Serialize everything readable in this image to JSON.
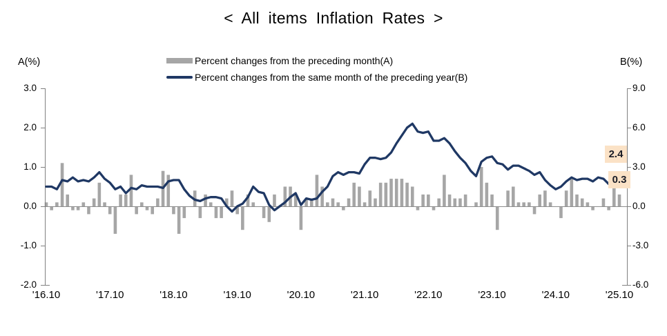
{
  "title": "< All items Inflation Rates >",
  "legend": {
    "monthly": "Percent changes from the preceding month(A)",
    "yearly": "Percent changes from the same month of the preceding year(B)"
  },
  "axes": {
    "left_title": "A(%)",
    "right_title": "B(%)",
    "left_ticks": [
      "3.0",
      "2.0",
      "1.0",
      "0.0",
      "-1.0",
      "-2.0"
    ],
    "right_ticks": [
      "9.0",
      "6.0",
      "3.0",
      "0.0",
      "-3.0",
      "-6.0"
    ],
    "x_ticks": [
      "'16.10",
      "'17.10",
      "'18.10",
      "'19.10",
      "'20.10",
      "'21.10",
      "'22.10",
      "'23.10",
      "'24.10",
      "'25.10"
    ]
  },
  "callouts": {
    "yoy_value": "2.4",
    "mom_value": "0.3"
  },
  "colors": {
    "bar": "#a6a6a6",
    "line": "#1f3864",
    "axis": "#808080",
    "zero_line": "#8c8c8c",
    "callout_bg": "#fbe2c6",
    "callout_text": "#1a1c26",
    "text": "#000000"
  },
  "chart_data": {
    "type": "bar+line combo",
    "title": "< All items Inflation Rates >",
    "frequency": "monthly",
    "x_start": "'16.10",
    "x_end": "'25.10",
    "x_tick_every": 12,
    "x_tick_labels": [
      "'16.10",
      "'17.10",
      "'18.10",
      "'19.10",
      "'20.10",
      "'21.10",
      "'22.10",
      "'23.10",
      "'24.10",
      "'25.10"
    ],
    "left_axis_label": "A(%)",
    "right_axis_label": "B(%)",
    "left_axis_range": [
      -2.0,
      3.0
    ],
    "right_axis_range": [
      -6.0,
      9.0
    ],
    "grid": false,
    "legend_position": "top-center",
    "series": [
      {
        "name": "Percent changes from the preceding month(A)",
        "type": "bar",
        "axis": "left",
        "values": [
          0.1,
          -0.1,
          0.1,
          1.1,
          0.3,
          -0.1,
          -0.1,
          0.1,
          -0.2,
          0.2,
          0.6,
          0.1,
          -0.2,
          -0.7,
          0.3,
          0.3,
          0.8,
          -0.2,
          0.1,
          -0.1,
          -0.2,
          0.2,
          0.9,
          0.8,
          -0.2,
          -0.7,
          -0.3,
          0.0,
          0.4,
          -0.3,
          0.3,
          0.1,
          -0.3,
          -0.3,
          0.2,
          0.4,
          -0.2,
          -0.6,
          0.3,
          0.1,
          0.0,
          -0.3,
          -0.4,
          0.3,
          0.0,
          0.5,
          0.5,
          0.3,
          -0.6,
          0.2,
          0.2,
          0.8,
          0.5,
          0.1,
          0.2,
          0.1,
          -0.1,
          0.2,
          0.6,
          0.5,
          0.1,
          0.4,
          0.2,
          0.6,
          0.6,
          0.7,
          0.7,
          0.7,
          0.6,
          0.5,
          -0.1,
          0.3,
          0.3,
          -0.1,
          0.2,
          0.8,
          0.3,
          0.2,
          0.2,
          0.3,
          0.0,
          0.1,
          1.0,
          0.6,
          0.3,
          -0.6,
          0.0,
          0.4,
          0.5,
          0.1,
          0.1,
          0.1,
          -0.2,
          0.3,
          0.4,
          0.1,
          0.0,
          -0.3,
          0.4,
          0.7,
          0.3,
          0.2,
          0.1,
          -0.1,
          0.0,
          0.2,
          -0.1,
          0.5,
          0.3
        ],
        "last_value_callout": "0.3"
      },
      {
        "name": "Percent changes from the same month of the preceding year(B)",
        "type": "line",
        "axis": "right",
        "values": [
          1.5,
          1.5,
          1.3,
          2.0,
          1.9,
          2.2,
          1.9,
          2.0,
          1.9,
          2.2,
          2.6,
          2.1,
          1.8,
          1.3,
          1.5,
          1.0,
          1.4,
          1.3,
          1.6,
          1.5,
          1.5,
          1.5,
          1.4,
          1.9,
          2.0,
          2.0,
          1.3,
          0.8,
          0.5,
          0.4,
          0.6,
          0.7,
          0.7,
          0.6,
          0.0,
          -0.4,
          0.0,
          0.2,
          0.7,
          1.5,
          1.1,
          1.0,
          0.1,
          -0.3,
          0.0,
          0.3,
          0.7,
          1.0,
          0.1,
          0.6,
          0.5,
          0.6,
          1.1,
          1.5,
          2.3,
          2.6,
          2.4,
          2.6,
          2.6,
          2.5,
          3.2,
          3.7,
          3.7,
          3.6,
          3.7,
          4.1,
          4.8,
          5.4,
          6.0,
          6.3,
          5.7,
          5.6,
          5.7,
          5.0,
          5.0,
          5.2,
          4.8,
          4.2,
          3.7,
          3.3,
          2.7,
          2.3,
          3.4,
          3.7,
          3.8,
          3.3,
          3.2,
          2.8,
          3.1,
          3.1,
          2.9,
          2.7,
          2.4,
          2.6,
          2.0,
          1.6,
          1.3,
          1.5,
          1.9,
          2.2,
          2.0,
          2.1,
          2.1,
          1.9,
          2.2,
          2.1,
          1.7,
          2.1,
          2.4
        ],
        "last_value_callout": "2.4"
      }
    ]
  }
}
